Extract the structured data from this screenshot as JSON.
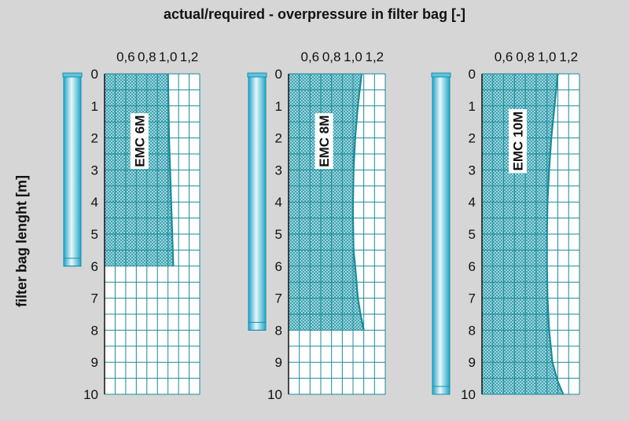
{
  "title": "actual/required - overpressure in filter bag  [-]",
  "ylabel": "filter bag lenght [m]",
  "colors": {
    "background": "#d6d6d6",
    "grid": "#1b8a99",
    "hatch": "#2a9aaa",
    "curve": "#1b8a99",
    "bag_light": "#e8f7fb",
    "bag_dark": "#1fa6c9",
    "label_box": "#ffffff"
  },
  "chart_data": [
    {
      "type": "line",
      "label": "EMC 6M",
      "bag_length": 6,
      "xlim": [
        0.4,
        1.3
      ],
      "ylim": [
        0,
        10
      ],
      "x_ticks": [
        "0,6",
        "0,8",
        "1,0",
        "1,2"
      ],
      "x_tick_values": [
        0.6,
        0.8,
        1.0,
        1.2
      ],
      "y_ticks": [
        "0",
        "1",
        "2",
        "3",
        "4",
        "5",
        "6",
        "7",
        "8",
        "9",
        "10"
      ],
      "x": [
        1.0,
        1.005,
        1.01,
        1.02,
        1.035,
        1.05
      ],
      "y": [
        0,
        1,
        2,
        3,
        4.5,
        6
      ],
      "grid": true
    },
    {
      "type": "line",
      "label": "EMC 8M",
      "bag_length": 8,
      "xlim": [
        0.4,
        1.3
      ],
      "ylim": [
        0,
        10
      ],
      "x_ticks": [
        "0,6",
        "0,8",
        "1,0",
        "1,2"
      ],
      "x_tick_values": [
        0.6,
        0.8,
        1.0,
        1.2
      ],
      "y_ticks": [
        "0",
        "1",
        "2",
        "3",
        "4",
        "5",
        "6",
        "7",
        "8",
        "9",
        "10"
      ],
      "x": [
        1.08,
        1.045,
        1.02,
        1.005,
        1.0,
        1.0,
        1.005,
        1.02,
        1.045,
        1.07,
        1.1
      ],
      "y": [
        0,
        1,
        2,
        3,
        4,
        4.5,
        5.5,
        6,
        7,
        7.5,
        8
      ],
      "grid": true
    },
    {
      "type": "line",
      "label": "EMC 10M",
      "bag_length": 10,
      "xlim": [
        0.4,
        1.3
      ],
      "ylim": [
        0,
        10
      ],
      "x_ticks": [
        "0,6",
        "0,8",
        "1,0",
        "1,2"
      ],
      "x_tick_values": [
        0.6,
        0.8,
        1.0,
        1.2
      ],
      "y_ticks": [
        "0",
        "1",
        "2",
        "3",
        "4",
        "5",
        "6",
        "7",
        "8",
        "9",
        "10"
      ],
      "x": [
        1.1,
        1.07,
        1.04,
        1.02,
        1.005,
        1.0,
        1.0,
        1.005,
        1.02,
        1.05,
        1.1,
        1.15
      ],
      "y": [
        0,
        1,
        2,
        3,
        4,
        5,
        6,
        7,
        8,
        9,
        9.6,
        10
      ],
      "grid": true
    }
  ]
}
